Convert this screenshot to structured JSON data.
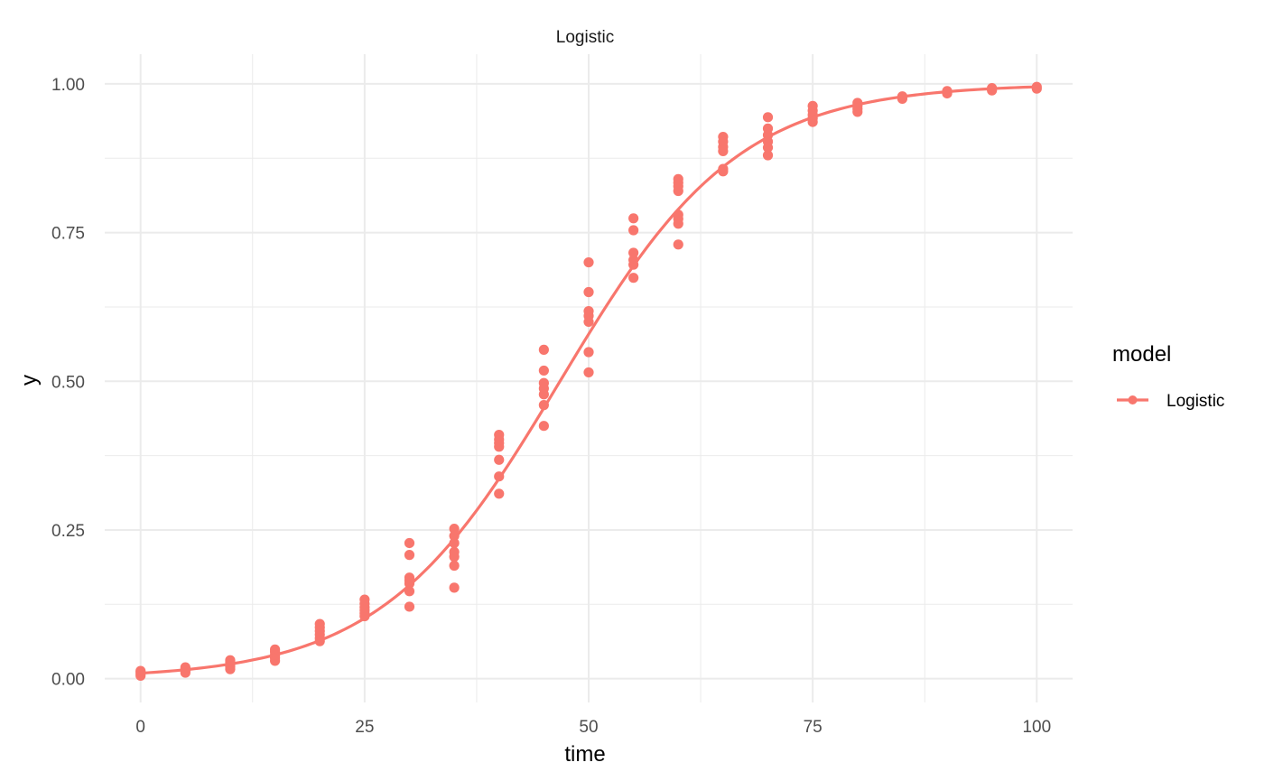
{
  "chart_data": {
    "type": "scatter",
    "title": "Logistic",
    "xlabel": "time",
    "ylabel": "y",
    "xlim": [
      -4,
      104
    ],
    "ylim": [
      -0.04,
      1.05
    ],
    "x_ticks": [
      0,
      25,
      50,
      75,
      100
    ],
    "x_tick_labels": [
      "0",
      "25",
      "50",
      "75",
      "100"
    ],
    "y_ticks": [
      0,
      0.25,
      0.5,
      0.75,
      1.0
    ],
    "y_tick_labels": [
      "0.00",
      "0.25",
      "0.50",
      "0.75",
      "1.00"
    ],
    "grid": true,
    "legend": {
      "title": "model",
      "position": "right",
      "entries": [
        {
          "label": "Logistic",
          "color": "#F8766D"
        }
      ]
    },
    "series": [
      {
        "name": "Logistic",
        "color": "#F8766D",
        "curve": {
          "type": "logistic",
          "midpoint": 46.8,
          "rate": 0.1,
          "x_range": [
            0,
            100
          ]
        },
        "points": [
          {
            "x": 0,
            "y": 0.005
          },
          {
            "x": 0,
            "y": 0.008
          },
          {
            "x": 0,
            "y": 0.011
          },
          {
            "x": 0,
            "y": 0.013
          },
          {
            "x": 5,
            "y": 0.01
          },
          {
            "x": 5,
            "y": 0.013
          },
          {
            "x": 5,
            "y": 0.016
          },
          {
            "x": 5,
            "y": 0.019
          },
          {
            "x": 10,
            "y": 0.016
          },
          {
            "x": 10,
            "y": 0.02
          },
          {
            "x": 10,
            "y": 0.024
          },
          {
            "x": 10,
            "y": 0.028
          },
          {
            "x": 10,
            "y": 0.031
          },
          {
            "x": 15,
            "y": 0.03
          },
          {
            "x": 15,
            "y": 0.035
          },
          {
            "x": 15,
            "y": 0.04
          },
          {
            "x": 15,
            "y": 0.045
          },
          {
            "x": 15,
            "y": 0.049
          },
          {
            "x": 20,
            "y": 0.063
          },
          {
            "x": 20,
            "y": 0.068
          },
          {
            "x": 20,
            "y": 0.074
          },
          {
            "x": 20,
            "y": 0.08
          },
          {
            "x": 20,
            "y": 0.086
          },
          {
            "x": 20,
            "y": 0.092
          },
          {
            "x": 25,
            "y": 0.105
          },
          {
            "x": 25,
            "y": 0.11
          },
          {
            "x": 25,
            "y": 0.115
          },
          {
            "x": 25,
            "y": 0.12
          },
          {
            "x": 25,
            "y": 0.126
          },
          {
            "x": 25,
            "y": 0.133
          },
          {
            "x": 30,
            "y": 0.121
          },
          {
            "x": 30,
            "y": 0.147
          },
          {
            "x": 30,
            "y": 0.16
          },
          {
            "x": 30,
            "y": 0.165
          },
          {
            "x": 30,
            "y": 0.17
          },
          {
            "x": 30,
            "y": 0.208
          },
          {
            "x": 30,
            "y": 0.228
          },
          {
            "x": 35,
            "y": 0.153
          },
          {
            "x": 35,
            "y": 0.19
          },
          {
            "x": 35,
            "y": 0.205
          },
          {
            "x": 35,
            "y": 0.213
          },
          {
            "x": 35,
            "y": 0.228
          },
          {
            "x": 35,
            "y": 0.24
          },
          {
            "x": 35,
            "y": 0.252
          },
          {
            "x": 40,
            "y": 0.311
          },
          {
            "x": 40,
            "y": 0.34
          },
          {
            "x": 40,
            "y": 0.368
          },
          {
            "x": 40,
            "y": 0.39
          },
          {
            "x": 40,
            "y": 0.396
          },
          {
            "x": 40,
            "y": 0.402
          },
          {
            "x": 40,
            "y": 0.41
          },
          {
            "x": 45,
            "y": 0.425
          },
          {
            "x": 45,
            "y": 0.46
          },
          {
            "x": 45,
            "y": 0.478
          },
          {
            "x": 45,
            "y": 0.488
          },
          {
            "x": 45,
            "y": 0.497
          },
          {
            "x": 45,
            "y": 0.518
          },
          {
            "x": 45,
            "y": 0.553
          },
          {
            "x": 50,
            "y": 0.515
          },
          {
            "x": 50,
            "y": 0.549
          },
          {
            "x": 50,
            "y": 0.6
          },
          {
            "x": 50,
            "y": 0.61
          },
          {
            "x": 50,
            "y": 0.618
          },
          {
            "x": 50,
            "y": 0.65
          },
          {
            "x": 50,
            "y": 0.7
          },
          {
            "x": 55,
            "y": 0.674
          },
          {
            "x": 55,
            "y": 0.696
          },
          {
            "x": 55,
            "y": 0.704
          },
          {
            "x": 55,
            "y": 0.716
          },
          {
            "x": 55,
            "y": 0.754
          },
          {
            "x": 55,
            "y": 0.774
          },
          {
            "x": 60,
            "y": 0.73
          },
          {
            "x": 60,
            "y": 0.765
          },
          {
            "x": 60,
            "y": 0.773
          },
          {
            "x": 60,
            "y": 0.78
          },
          {
            "x": 60,
            "y": 0.82
          },
          {
            "x": 60,
            "y": 0.828
          },
          {
            "x": 60,
            "y": 0.834
          },
          {
            "x": 60,
            "y": 0.84
          },
          {
            "x": 65,
            "y": 0.853
          },
          {
            "x": 65,
            "y": 0.857
          },
          {
            "x": 65,
            "y": 0.887
          },
          {
            "x": 65,
            "y": 0.894
          },
          {
            "x": 65,
            "y": 0.903
          },
          {
            "x": 65,
            "y": 0.911
          },
          {
            "x": 70,
            "y": 0.88
          },
          {
            "x": 70,
            "y": 0.893
          },
          {
            "x": 70,
            "y": 0.903
          },
          {
            "x": 70,
            "y": 0.914
          },
          {
            "x": 70,
            "y": 0.925
          },
          {
            "x": 70,
            "y": 0.944
          },
          {
            "x": 75,
            "y": 0.936
          },
          {
            "x": 75,
            "y": 0.942
          },
          {
            "x": 75,
            "y": 0.948
          },
          {
            "x": 75,
            "y": 0.955
          },
          {
            "x": 75,
            "y": 0.963
          },
          {
            "x": 80,
            "y": 0.953
          },
          {
            "x": 80,
            "y": 0.958
          },
          {
            "x": 80,
            "y": 0.963
          },
          {
            "x": 80,
            "y": 0.968
          },
          {
            "x": 85,
            "y": 0.975
          },
          {
            "x": 85,
            "y": 0.979
          },
          {
            "x": 90,
            "y": 0.984
          },
          {
            "x": 90,
            "y": 0.988
          },
          {
            "x": 95,
            "y": 0.989
          },
          {
            "x": 95,
            "y": 0.993
          },
          {
            "x": 100,
            "y": 0.992
          },
          {
            "x": 100,
            "y": 0.995
          }
        ]
      }
    ]
  }
}
